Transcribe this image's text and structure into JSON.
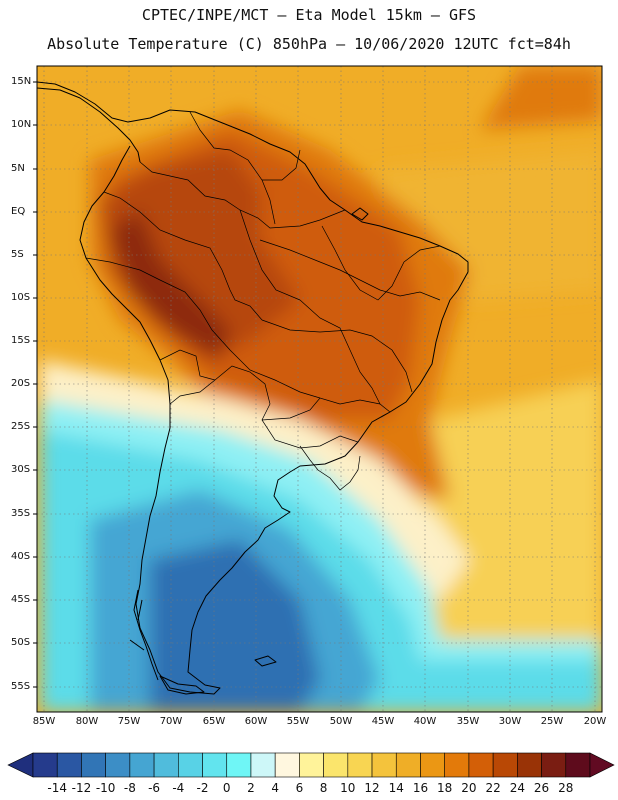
{
  "title": {
    "line1": "CPTEC/INPE/MCT –  Eta Model 15km – GFS",
    "line2": "Absolute Temperature (C) 850hPa – 10/06/2020 12UTC fct=84h"
  },
  "map": {
    "region": "South America",
    "variable": "Absolute Temperature (C) 850hPa",
    "latitude_labels": [
      "15N",
      "10N",
      "5N",
      "EQ",
      "5S",
      "10S",
      "15S",
      "20S",
      "25S",
      "30S",
      "35S",
      "40S",
      "45S",
      "50S",
      "55S"
    ],
    "longitude_labels": [
      "85W",
      "80W",
      "75W",
      "70W",
      "65W",
      "60W",
      "55W",
      "50W",
      "45W",
      "40W",
      "35W",
      "30W",
      "25W",
      "20W"
    ]
  },
  "colorbar": {
    "labels": [
      "-14",
      "-12",
      "-10",
      "-8",
      "-6",
      "-4",
      "-2",
      "0",
      "2",
      "4",
      "6",
      "8",
      "10",
      "12",
      "14",
      "16",
      "18",
      "20",
      "22",
      "24",
      "26",
      "28"
    ],
    "colors": [
      "#253b8c",
      "#2a57a3",
      "#3175b6",
      "#3c8ec6",
      "#45a5d2",
      "#50bcdc",
      "#58d2e6",
      "#62e4ee",
      "#6ff6f6",
      "#cdf7f8",
      "#fff7df",
      "#fff39a",
      "#fbe56c",
      "#f8d552",
      "#f4c33c",
      "#efae27",
      "#eb9714",
      "#e37a0a",
      "#d35f07",
      "#b94805",
      "#993306",
      "#7a1d12",
      "#5e0b1c"
    ],
    "under_color": "#1f2f7d",
    "over_color": "#610a22"
  }
}
